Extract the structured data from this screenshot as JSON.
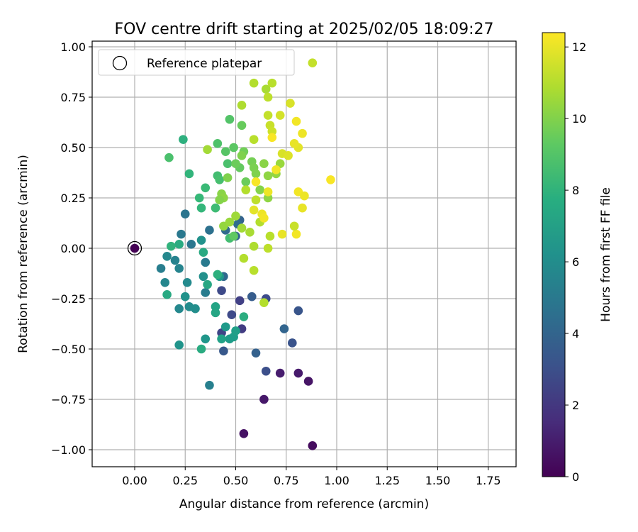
{
  "chart_data": {
    "type": "scatter",
    "title": "FOV centre drift starting at 2025/02/05 18:09:27",
    "xlabel": "Angular distance from reference (arcmin)",
    "ylabel": "Rotation from reference (arcmin)",
    "xlim": [
      -0.21,
      1.89
    ],
    "ylim": [
      -1.08,
      1.03
    ],
    "x_ticks": [
      0.0,
      0.25,
      0.5,
      0.75,
      1.0,
      1.25,
      1.5,
      1.75
    ],
    "x_tick_labels": [
      "0.00",
      "0.25",
      "0.50",
      "0.75",
      "1.00",
      "1.25",
      "1.50",
      "1.75"
    ],
    "y_ticks": [
      -1.0,
      -0.75,
      -0.5,
      -0.25,
      0.0,
      0.25,
      0.5,
      0.75,
      1.0
    ],
    "y_tick_labels": [
      "−1.00",
      "−0.75",
      "−0.50",
      "−0.25",
      "0.00",
      "0.25",
      "0.50",
      "0.75",
      "1.00"
    ],
    "grid": true,
    "legend": {
      "placement": "top-left",
      "entries": [
        "Reference platepar"
      ]
    },
    "reference_point": {
      "x": 0.0,
      "y": 0.0
    },
    "colorbar": {
      "label": "Hours from first FF file",
      "min": 0,
      "max": 12.4,
      "ticks": [
        0,
        2,
        4,
        6,
        8,
        10,
        12
      ],
      "tick_labels": [
        "0",
        "2",
        "4",
        "6",
        "8",
        "10",
        "12"
      ],
      "colormap": "viridis"
    },
    "points": [
      [
        0.0,
        0.0,
        0.0
      ],
      [
        0.54,
        -0.92,
        0.6
      ],
      [
        0.88,
        -0.98,
        0.4
      ],
      [
        0.64,
        -0.75,
        0.8
      ],
      [
        0.72,
        -0.62,
        1.0
      ],
      [
        0.81,
        -0.62,
        0.9
      ],
      [
        0.86,
        -0.66,
        0.7
      ],
      [
        0.53,
        -0.4,
        2.2
      ],
      [
        0.52,
        -0.26,
        2.4
      ],
      [
        0.43,
        -0.42,
        2.6
      ],
      [
        0.48,
        -0.33,
        2.8
      ],
      [
        0.43,
        -0.21,
        2.8
      ],
      [
        0.65,
        -0.25,
        2.9
      ],
      [
        0.65,
        -0.61,
        3.0
      ],
      [
        0.81,
        -0.31,
        3.3
      ],
      [
        0.78,
        -0.47,
        3.2
      ],
      [
        0.58,
        -0.24,
        3.6
      ],
      [
        0.44,
        -0.51,
        3.4
      ],
      [
        0.6,
        -0.52,
        3.8
      ],
      [
        0.74,
        -0.4,
        4.0
      ],
      [
        0.52,
        0.14,
        3.9
      ],
      [
        0.5,
        0.06,
        4.0
      ],
      [
        0.44,
        -0.14,
        4.2
      ],
      [
        0.45,
        0.09,
        4.3
      ],
      [
        0.51,
        0.12,
        4.4
      ],
      [
        0.37,
        0.09,
        4.6
      ],
      [
        0.25,
        0.17,
        4.8
      ],
      [
        0.28,
        0.02,
        4.9
      ],
      [
        0.23,
        0.07,
        5.0
      ],
      [
        0.35,
        -0.07,
        5.1
      ],
      [
        0.35,
        -0.22,
        5.2
      ],
      [
        0.37,
        -0.68,
        5.4
      ],
      [
        0.13,
        -0.1,
        5.3
      ],
      [
        0.2,
        -0.06,
        5.5
      ],
      [
        0.22,
        -0.1,
        5.6
      ],
      [
        0.15,
        -0.17,
        5.7
      ],
      [
        0.16,
        -0.04,
        5.8
      ],
      [
        0.22,
        -0.3,
        5.8
      ],
      [
        0.26,
        -0.17,
        5.9
      ],
      [
        0.27,
        -0.29,
        6.0
      ],
      [
        0.3,
        -0.3,
        6.1
      ],
      [
        0.34,
        -0.14,
        6.2
      ],
      [
        0.25,
        -0.24,
        6.3
      ],
      [
        0.33,
        0.04,
        6.3
      ],
      [
        0.22,
        -0.48,
        6.4
      ],
      [
        0.35,
        -0.45,
        6.5
      ],
      [
        0.42,
        -0.14,
        6.6
      ],
      [
        0.45,
        -0.39,
        6.7
      ],
      [
        0.47,
        -0.45,
        6.8
      ],
      [
        0.49,
        -0.44,
        6.9
      ],
      [
        0.5,
        -0.41,
        7.0
      ],
      [
        0.43,
        -0.45,
        7.1
      ],
      [
        0.4,
        -0.29,
        7.2
      ],
      [
        0.4,
        -0.32,
        7.3
      ],
      [
        0.36,
        -0.18,
        7.4
      ],
      [
        0.34,
        -0.02,
        7.5
      ],
      [
        0.16,
        -0.23,
        7.5
      ],
      [
        0.22,
        0.02,
        7.6
      ],
      [
        0.33,
        -0.5,
        7.6
      ],
      [
        0.54,
        -0.34,
        7.7
      ],
      [
        0.41,
        -0.13,
        7.8
      ],
      [
        0.24,
        0.54,
        7.8
      ],
      [
        0.18,
        0.01,
        8.0
      ],
      [
        0.27,
        0.37,
        8.1
      ],
      [
        0.33,
        0.2,
        8.2
      ],
      [
        0.32,
        0.25,
        8.3
      ],
      [
        0.35,
        0.3,
        8.4
      ],
      [
        0.4,
        0.2,
        8.5
      ],
      [
        0.41,
        0.36,
        8.6
      ],
      [
        0.42,
        0.34,
        8.7
      ],
      [
        0.46,
        0.42,
        8.8
      ],
      [
        0.47,
        0.05,
        8.6
      ],
      [
        0.17,
        0.45,
        8.8
      ],
      [
        0.41,
        0.52,
        8.9
      ],
      [
        0.47,
        0.64,
        9.0
      ],
      [
        0.45,
        0.48,
        9.1
      ],
      [
        0.49,
        0.5,
        9.2
      ],
      [
        0.49,
        0.06,
        9.3
      ],
      [
        0.52,
        0.4,
        9.4
      ],
      [
        0.53,
        0.61,
        9.5
      ],
      [
        0.55,
        0.33,
        9.6
      ],
      [
        0.54,
        0.48,
        9.7
      ],
      [
        0.58,
        0.43,
        9.8
      ],
      [
        0.59,
        0.4,
        9.9
      ],
      [
        0.6,
        0.37,
        10.0
      ],
      [
        0.62,
        0.29,
        10.1
      ],
      [
        0.64,
        0.42,
        10.2
      ],
      [
        0.66,
        0.36,
        10.3
      ],
      [
        0.66,
        0.25,
        10.3
      ],
      [
        0.7,
        0.37,
        10.4
      ],
      [
        0.72,
        0.42,
        10.5
      ],
      [
        0.43,
        0.27,
        10.2
      ],
      [
        0.44,
        0.25,
        10.3
      ],
      [
        0.42,
        0.24,
        10.1
      ],
      [
        0.46,
        0.35,
        10.0
      ],
      [
        0.44,
        0.11,
        10.4
      ],
      [
        0.47,
        0.13,
        10.5
      ],
      [
        0.5,
        0.16,
        10.6
      ],
      [
        0.53,
        0.1,
        10.7
      ],
      [
        0.57,
        0.08,
        10.8
      ],
      [
        0.59,
        0.01,
        10.9
      ],
      [
        0.54,
        -0.05,
        11.0
      ],
      [
        0.59,
        -0.11,
        11.1
      ],
      [
        0.64,
        -0.27,
        11.0
      ],
      [
        0.62,
        0.13,
        11.0
      ],
      [
        0.67,
        0.06,
        11.1
      ],
      [
        0.66,
        0.0,
        11.2
      ],
      [
        0.6,
        0.24,
        11.2
      ],
      [
        0.55,
        0.29,
        11.0
      ],
      [
        0.59,
        0.54,
        11.1
      ],
      [
        0.53,
        0.71,
        10.9
      ],
      [
        0.59,
        0.82,
        11.0
      ],
      [
        0.65,
        0.79,
        10.8
      ],
      [
        0.68,
        0.82,
        11.1
      ],
      [
        0.66,
        0.75,
        11.2
      ],
      [
        0.66,
        0.66,
        11.3
      ],
      [
        0.67,
        0.61,
        11.4
      ],
      [
        0.68,
        0.58,
        11.5
      ],
      [
        0.72,
        0.66,
        11.6
      ],
      [
        0.77,
        0.72,
        11.7
      ],
      [
        0.73,
        0.47,
        11.7
      ],
      [
        0.76,
        0.46,
        11.8
      ],
      [
        0.81,
        0.5,
        11.9
      ],
      [
        0.79,
        0.52,
        12.0
      ],
      [
        0.83,
        0.57,
        12.1
      ],
      [
        0.8,
        0.63,
        12.2
      ],
      [
        0.97,
        0.34,
        12.3
      ],
      [
        0.81,
        0.28,
        12.2
      ],
      [
        0.84,
        0.26,
        12.1
      ],
      [
        0.83,
        0.2,
        12.0
      ],
      [
        0.8,
        0.07,
        12.2
      ],
      [
        0.73,
        0.07,
        12.0
      ],
      [
        0.79,
        0.11,
        11.4
      ],
      [
        0.66,
        0.28,
        12.1
      ],
      [
        0.68,
        0.55,
        12.3
      ],
      [
        0.7,
        0.39,
        12.2
      ],
      [
        0.6,
        0.33,
        12.3
      ],
      [
        0.59,
        0.19,
        11.9
      ],
      [
        0.63,
        0.17,
        12.1
      ],
      [
        0.64,
        0.15,
        12.2
      ],
      [
        0.88,
        0.92,
        11.3
      ],
      [
        0.36,
        0.49,
        10.7
      ],
      [
        0.53,
        0.46,
        10.0
      ],
      [
        0.5,
        0.42,
        9.6
      ]
    ]
  }
}
